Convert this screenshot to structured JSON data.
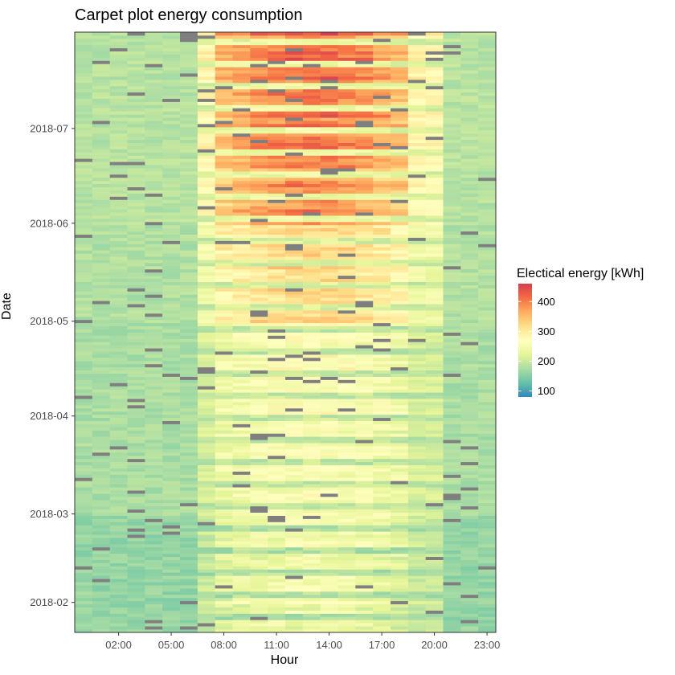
{
  "chart_data": {
    "type": "heatmap",
    "title": "Carpet plot energy consumption",
    "xlabel": "Hour",
    "ylabel": "Date",
    "x_ticks": [
      "02:00",
      "05:00",
      "08:00",
      "11:00",
      "14:00",
      "17:00",
      "20:00",
      "23:00"
    ],
    "x_tick_hours": [
      2,
      5,
      8,
      11,
      14,
      17,
      20,
      23
    ],
    "y_ticks": [
      "2018-02",
      "2018-03",
      "2018-04",
      "2018-05",
      "2018-06",
      "2018-07"
    ],
    "y_tick_dates": [
      "2018-02-01",
      "2018-03-01",
      "2018-04-01",
      "2018-05-01",
      "2018-06-01",
      "2018-07-01"
    ],
    "date_range": [
      "2018-01-23",
      "2018-07-31"
    ],
    "hours": [
      0,
      23
    ],
    "legend": {
      "title": "Electical energy [kWh]",
      "ticks": [
        100,
        200,
        300,
        400
      ],
      "range": [
        80,
        460
      ],
      "colors": [
        "#3288bd",
        "#66c2a5",
        "#abdda4",
        "#e6f598",
        "#ffffbf",
        "#fee08b",
        "#fdae61",
        "#f46d43",
        "#d53e4f"
      ]
    },
    "missing_color": "#7f7f7f",
    "profile_by_month": {
      "Jan": {
        "night": 160,
        "day_peak": 240
      },
      "Feb": {
        "night": 160,
        "day_peak": 250
      },
      "Mar": {
        "night": 175,
        "day_peak": 255
      },
      "Apr": {
        "night": 175,
        "day_peak": 265
      },
      "May": {
        "night": 180,
        "day_peak": 330
      },
      "Jun": {
        "night": 185,
        "day_peak": 395
      },
      "Jul": {
        "night": 185,
        "day_peak": 410
      }
    },
    "grid": false,
    "legend_position": "right"
  }
}
